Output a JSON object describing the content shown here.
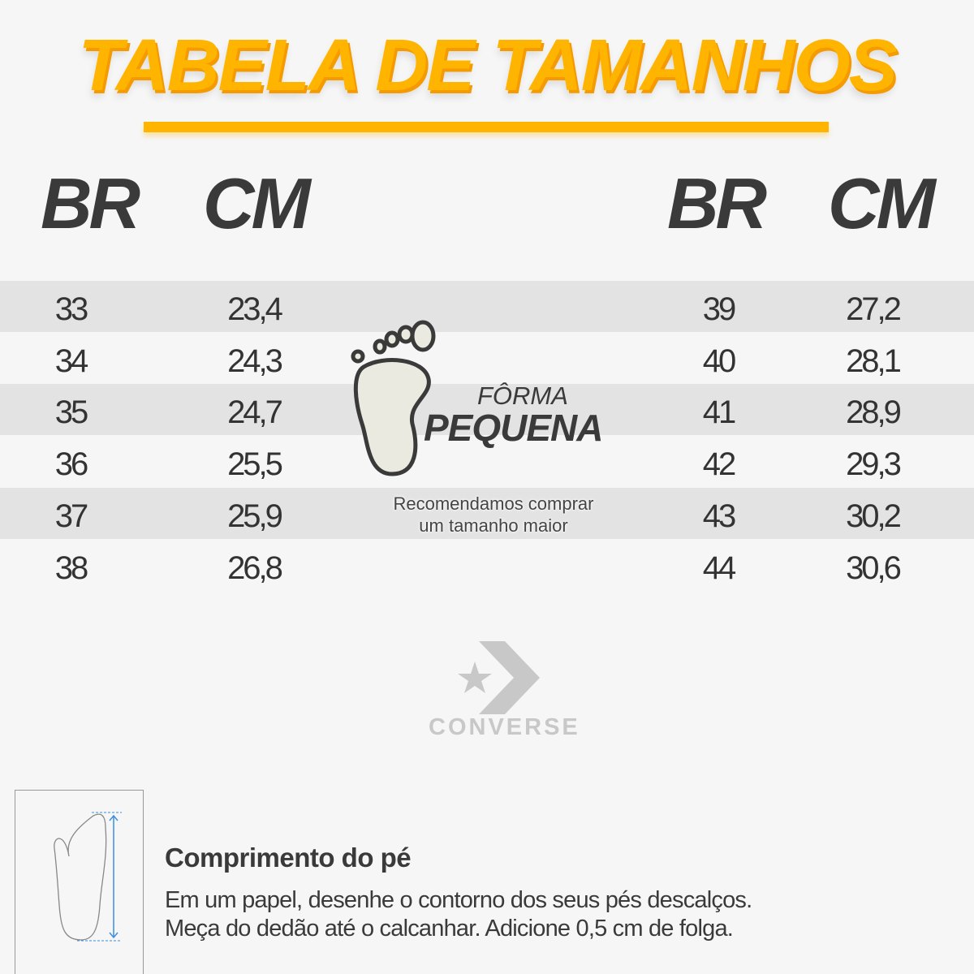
{
  "title": "TABELA DE TAMANHOS",
  "headers": {
    "left_br": "BR",
    "left_cm": "CM",
    "right_br": "BR",
    "right_cm": "CM"
  },
  "left_rows": [
    {
      "br": "33",
      "cm": "23,4"
    },
    {
      "br": "34",
      "cm": "24,3"
    },
    {
      "br": "35",
      "cm": "24,7"
    },
    {
      "br": "36",
      "cm": "25,5"
    },
    {
      "br": "37",
      "cm": "25,9"
    },
    {
      "br": "38",
      "cm": "26,8"
    }
  ],
  "right_rows": [
    {
      "br": "39",
      "cm": "27,2"
    },
    {
      "br": "40",
      "cm": "28,1"
    },
    {
      "br": "41",
      "cm": "28,9"
    },
    {
      "br": "42",
      "cm": "29,3"
    },
    {
      "br": "43",
      "cm": "30,2"
    },
    {
      "br": "44",
      "cm": "30,6"
    }
  ],
  "fit": {
    "line1": "FÔRMA",
    "line2": "PEQUENA",
    "rec1": "Recomendamos comprar",
    "rec2": "um tamanho maior"
  },
  "brand": {
    "name": "CONVERSE"
  },
  "instructions": {
    "heading": "Comprimento do pé",
    "line1": "Em um papel, desenhe o contorno dos seus pés descalços.",
    "line2": "Meça do dedão até o calcanhar. Adicione 0,5 cm de folga."
  },
  "colors": {
    "accent": "#ffb400",
    "text": "#3a3a3a",
    "stripe": "#e3e3e3",
    "measure": "#3a8ee0"
  }
}
